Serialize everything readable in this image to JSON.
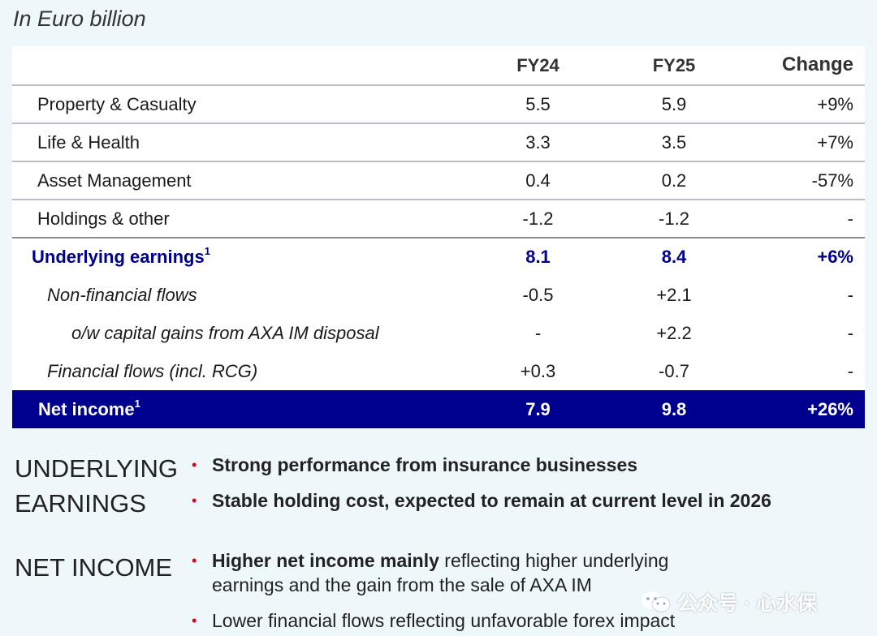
{
  "unit_label": "In Euro billion",
  "table": {
    "headers": {
      "col1": "",
      "fy24": "FY24",
      "fy25": "FY25",
      "change": "Change"
    },
    "rows": [
      {
        "label": "Property & Casualty",
        "fy24": "5.5",
        "fy25": "5.9",
        "change": "+9%"
      },
      {
        "label": "Life & Health",
        "fy24": "3.3",
        "fy25": "3.5",
        "change": "+7%"
      },
      {
        "label": "Asset Management",
        "fy24": "0.4",
        "fy25": "0.2",
        "change": "-57%"
      },
      {
        "label": "Holdings & other",
        "fy24": "-1.2",
        "fy25": "-1.2",
        "change": "-"
      },
      {
        "label": "Underlying earnings",
        "sup": "1",
        "fy24": "8.1",
        "fy25": "8.4",
        "change": "+6%"
      },
      {
        "label": "Non-financial flows",
        "fy24": "-0.5",
        "fy25": "+2.1",
        "change": "-"
      },
      {
        "label": "o/w capital gains from AXA IM disposal",
        "fy24": "-",
        "fy25": "+2.2",
        "change": "-"
      },
      {
        "label": "Financial flows (incl. RCG)",
        "fy24": "+0.3",
        "fy25": "-0.7",
        "change": "-"
      },
      {
        "label": "Net income",
        "sup": "1",
        "fy24": "7.9",
        "fy25": "9.8",
        "change": "+26%"
      }
    ]
  },
  "sections": {
    "underlying": {
      "title_line1": "UNDERLYING",
      "title_line2": "EARNINGS",
      "bullet1": "Strong performance from insurance businesses",
      "bullet2": "Stable holding cost, expected to remain at current level in 2026"
    },
    "net_income": {
      "title": "NET INCOME",
      "bullet1_bold": "Higher net income mainly",
      "bullet1_rest": " reflecting higher underlying",
      "bullet1_line2": "earnings and the gain from the sale of AXA IM",
      "bullet2": "Lower financial flows reflecting unfavorable forex impact"
    }
  },
  "bullet_glyph": "•",
  "watermark": "公众号 · 心水保",
  "colors": {
    "brand_blue": "#00008f",
    "bullet_red": "#e0001b",
    "background": "#eef7fa"
  }
}
